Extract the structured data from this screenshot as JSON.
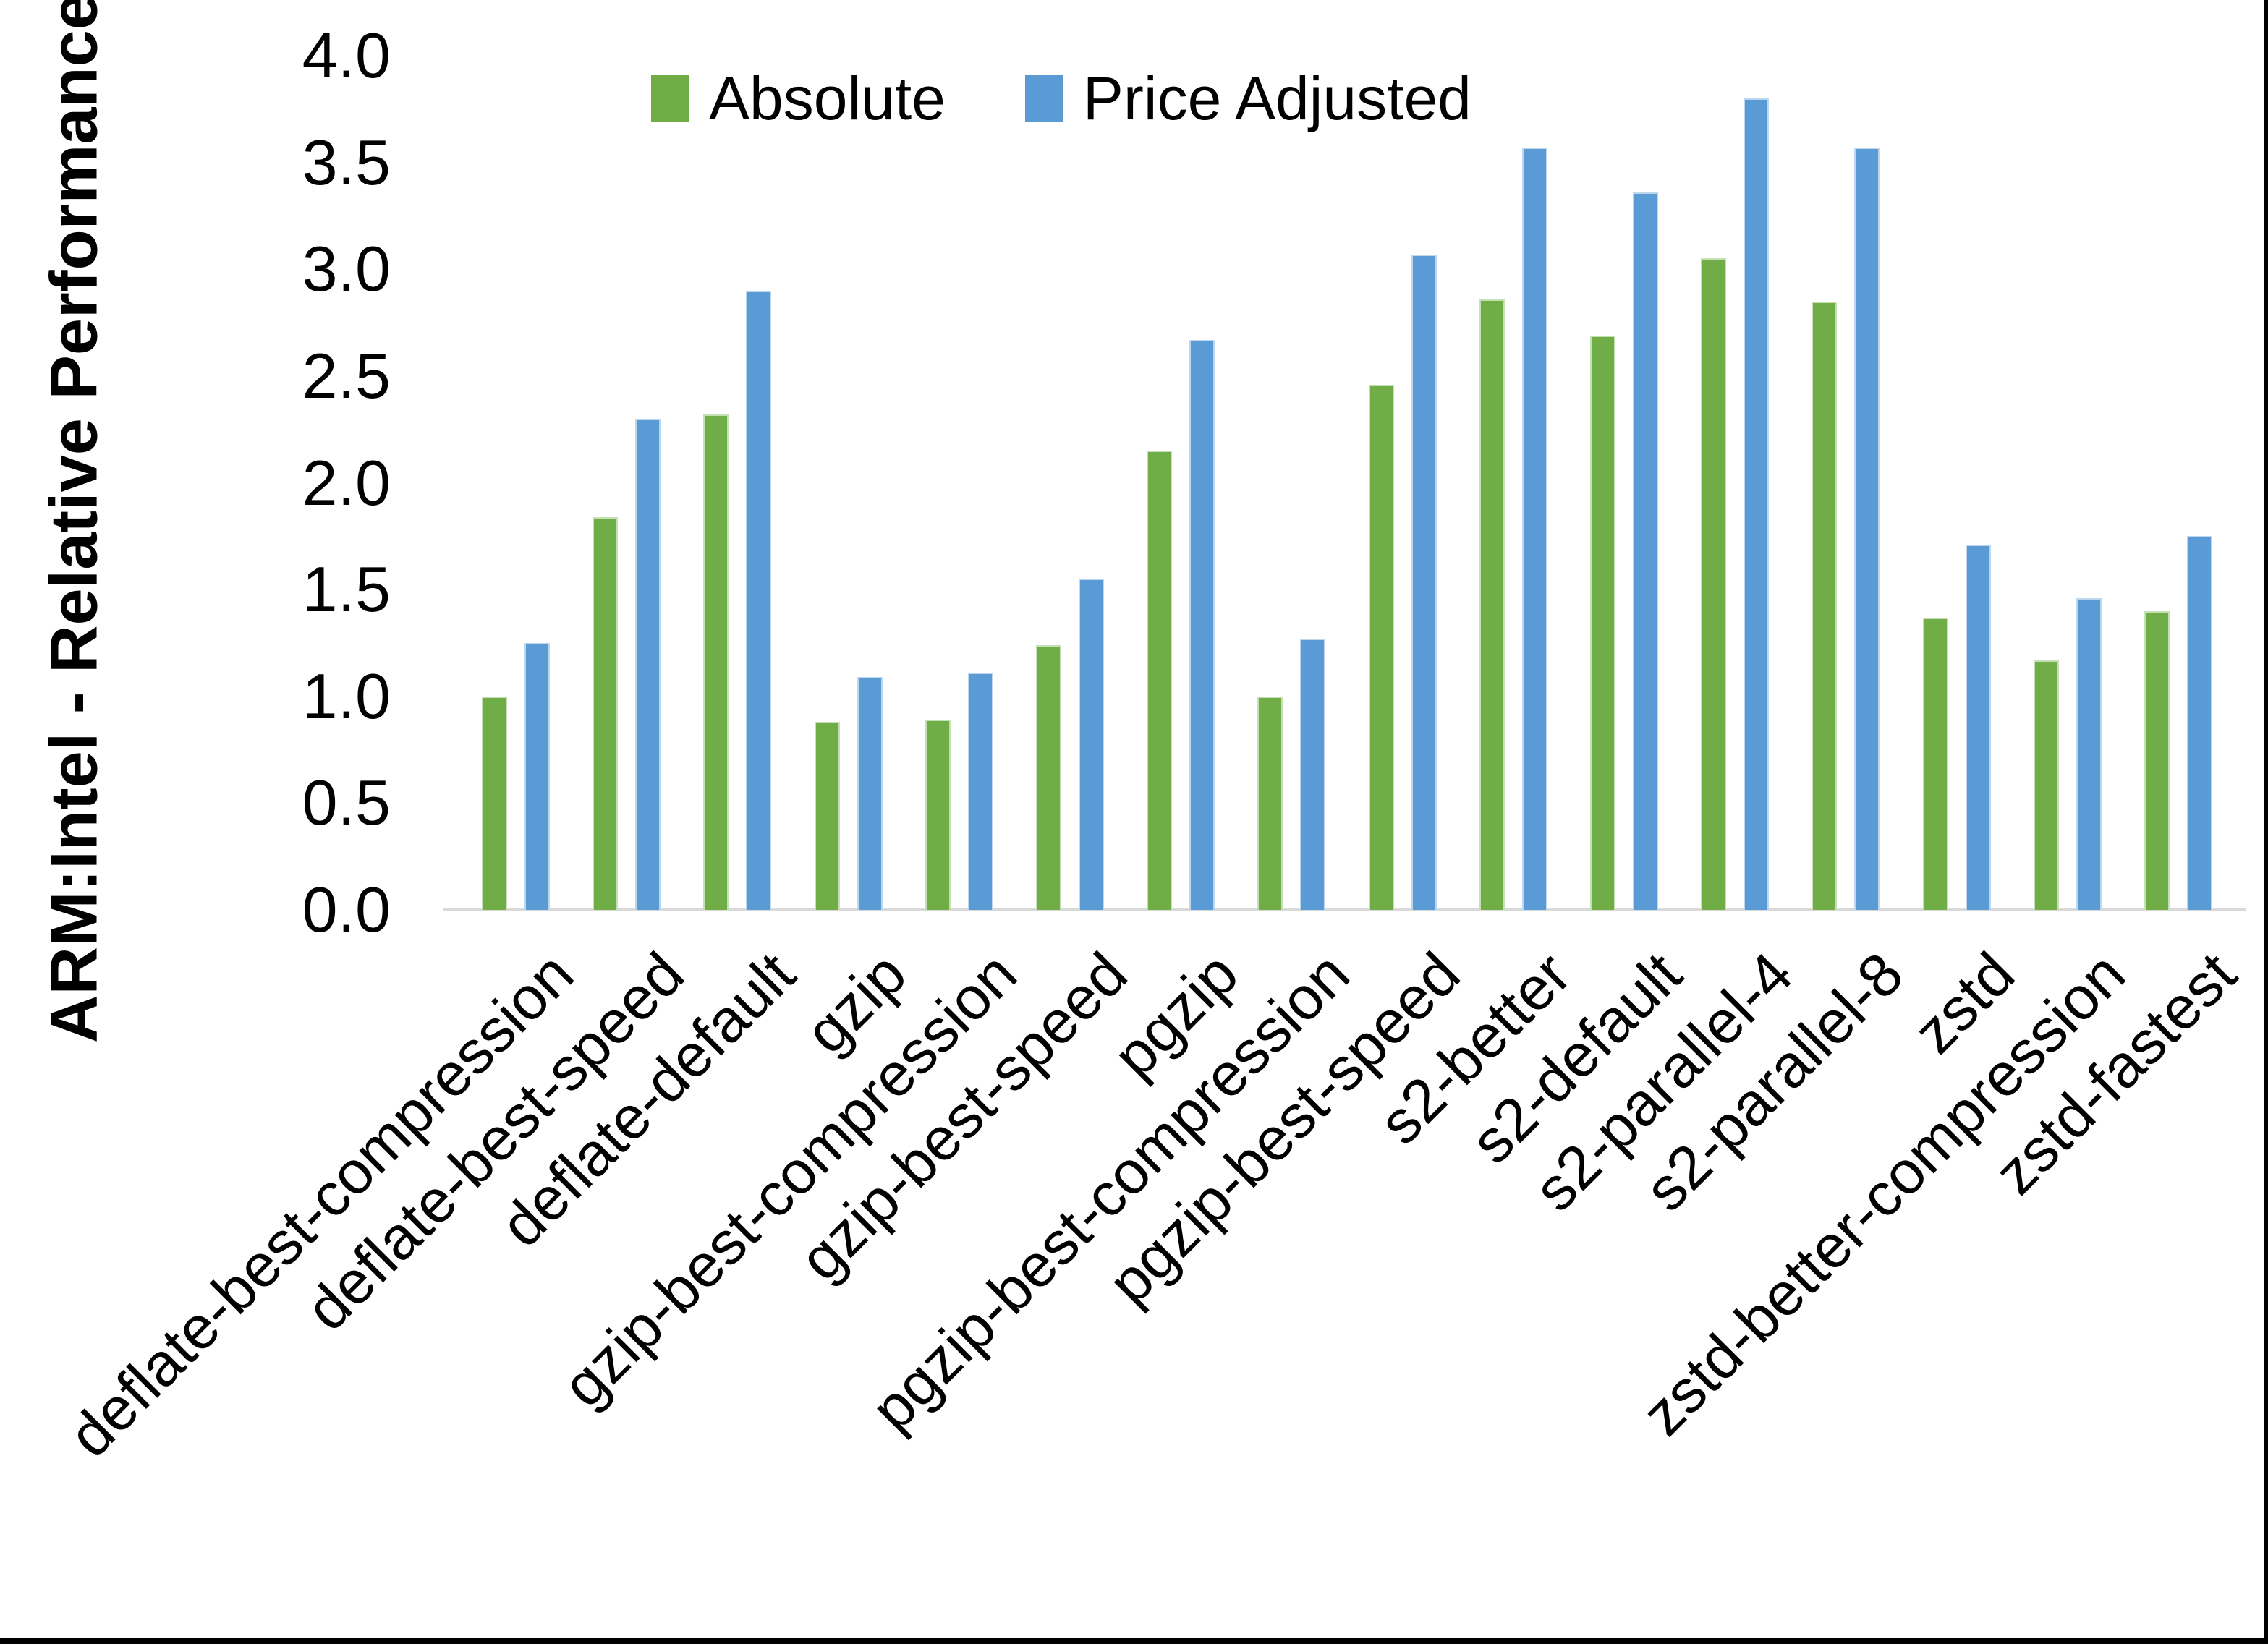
{
  "chart_data": {
    "type": "bar",
    "title": "",
    "ylabel": "ARM:Intel - Relative Performance",
    "xlabel": "",
    "ylim": [
      0.0,
      4.0
    ],
    "ytick_step": 0.5,
    "ytick_labels": [
      "4.0",
      "3.5",
      "3.0",
      "2.5",
      "2.0",
      "1.5",
      "1.0",
      "0.5",
      "0.0"
    ],
    "grid": false,
    "legend_position": "top-center",
    "categories": [
      "deflate-best-compression",
      "deflate-best-speed",
      "deflate-default",
      "gzip",
      "gzip-best-compression",
      "gzip-best-speed",
      "pgzip",
      "pgzip-best-compression",
      "pgzip-best-speed",
      "s2-better",
      "s2-default",
      "s2-parallel-4",
      "s2-parallel-8",
      "zstd",
      "zstd-better-compression",
      "zstd-fastest"
    ],
    "series": [
      {
        "name": "Absolute",
        "color": "#70AD47",
        "values": [
          1.0,
          1.84,
          2.32,
          0.88,
          0.89,
          1.24,
          2.15,
          1.0,
          2.46,
          2.86,
          2.69,
          3.05,
          2.85,
          1.37,
          1.17,
          1.4
        ]
      },
      {
        "name": "Price Adjusted",
        "color": "#5B9BD5",
        "values": [
          1.25,
          2.3,
          2.9,
          1.09,
          1.11,
          1.55,
          2.67,
          1.27,
          3.07,
          3.57,
          3.36,
          3.8,
          3.57,
          1.71,
          1.46,
          1.75
        ]
      }
    ],
    "colors": {
      "axis_line": "#D9D9D9",
      "text": "#000000",
      "border": "#000000"
    }
  }
}
